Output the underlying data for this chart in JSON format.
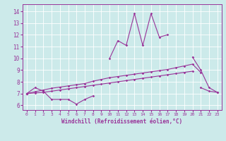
{
  "xlabel": "Windchill (Refroidissement éolien,°C)",
  "background_color": "#cceaea",
  "grid_color": "#ffffff",
  "line_color": "#993399",
  "x_ticks": [
    0,
    1,
    2,
    3,
    4,
    5,
    6,
    7,
    8,
    9,
    10,
    11,
    12,
    13,
    14,
    15,
    16,
    17,
    18,
    19,
    20,
    21,
    22,
    23
  ],
  "ylim": [
    5.6,
    14.6
  ],
  "xlim": [
    -0.5,
    23.5
  ],
  "yticks": [
    6,
    7,
    8,
    9,
    10,
    11,
    12,
    13,
    14
  ],
  "series": {
    "line1": [
      7.0,
      7.5,
      7.2,
      6.5,
      6.5,
      6.5,
      6.1,
      6.5,
      6.8,
      null,
      null,
      null,
      null,
      null,
      null,
      null,
      null,
      null,
      null,
      null,
      null,
      7.5,
      7.2,
      7.1
    ],
    "line3": [
      7.0,
      7.15,
      7.3,
      7.45,
      7.55,
      7.65,
      7.75,
      7.85,
      8.05,
      8.2,
      8.35,
      8.45,
      8.55,
      8.65,
      8.75,
      8.85,
      8.95,
      9.05,
      9.2,
      9.35,
      9.5,
      8.8,
      null,
      null
    ],
    "line4": [
      7.0,
      7.05,
      7.1,
      7.2,
      7.3,
      7.4,
      7.5,
      7.6,
      7.7,
      7.8,
      7.9,
      8.0,
      8.1,
      8.2,
      8.3,
      8.4,
      8.5,
      8.6,
      8.7,
      8.8,
      8.9,
      null,
      null,
      null
    ],
    "line5": [
      7.0,
      null,
      null,
      null,
      null,
      null,
      null,
      null,
      null,
      null,
      10.0,
      11.5,
      11.1,
      13.8,
      11.1,
      13.8,
      11.8,
      12.0,
      null,
      null,
      10.1,
      9.0,
      7.5,
      7.1
    ]
  }
}
